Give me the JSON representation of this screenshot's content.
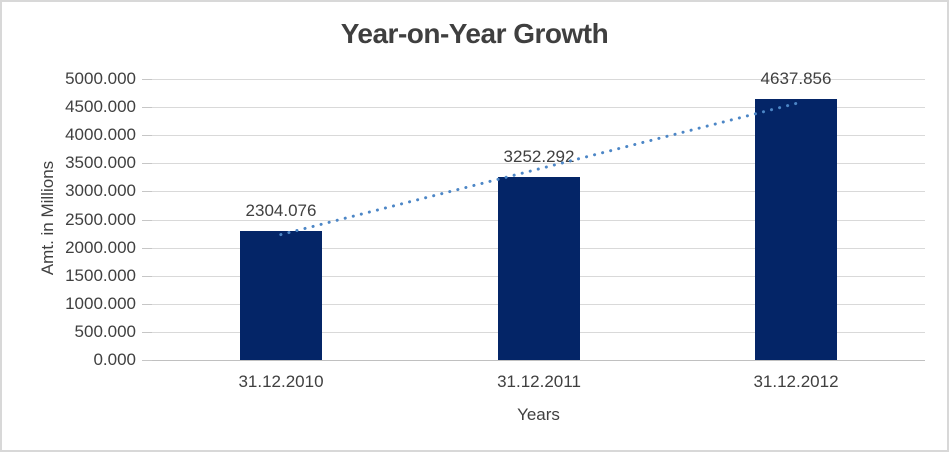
{
  "frame": {
    "background": "#FFFFFF",
    "border_color": "#D8D8D8"
  },
  "colors": {
    "bar": "#042567",
    "trendline": "#4C86C6",
    "gridline": "#D9D9D9",
    "axis_line": "#C0C0C0",
    "text": "#404040",
    "title_text": "#3F3F3F"
  },
  "chart_data": {
    "type": "bar",
    "title": "Year-on-Year Growth",
    "xlabel": "Years",
    "ylabel": "Amt. in Millions",
    "categories": [
      "31.12.2010",
      "31.12.2011",
      "31.12.2012"
    ],
    "values": [
      2304.076,
      3252.292,
      4637.856
    ],
    "data_labels": [
      "2304.076",
      "3252.292",
      "4637.856"
    ],
    "ylim": [
      0,
      5000
    ],
    "ytick_step": 500,
    "ytick_labels": [
      "0.000",
      "500.000",
      "1000.000",
      "1500.000",
      "2000.000",
      "2500.000",
      "3000.000",
      "3500.000",
      "4000.000",
      "4500.000",
      "5000.000"
    ],
    "grid": true,
    "legend": false,
    "trendline": {
      "fit": "linear",
      "style": "dotted",
      "color": "#4C86C6"
    }
  }
}
